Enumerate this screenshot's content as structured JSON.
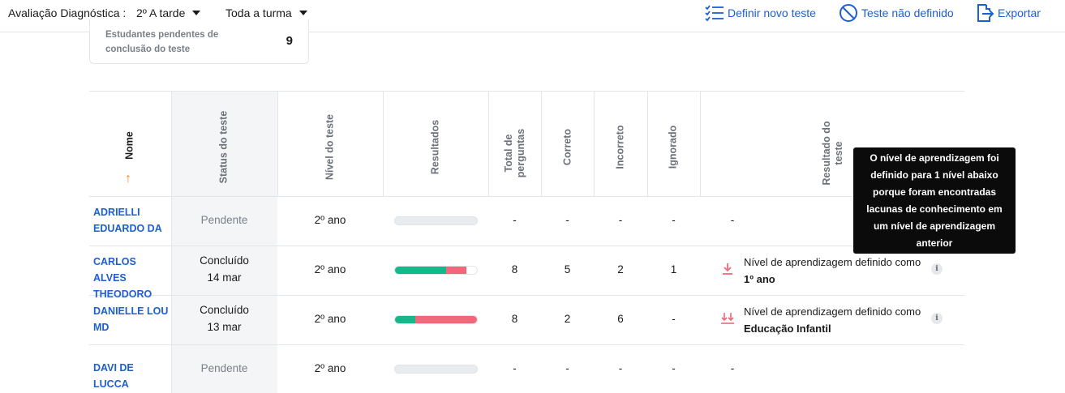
{
  "topbar": {
    "label": "Avaliação Diagnóstica :",
    "class_select": "2º A tarde",
    "group_select": "Toda a turma",
    "actions": {
      "define_test": "Definir novo teste",
      "test_undefined": "Teste não definido",
      "export": "Exportar"
    },
    "colors": {
      "accent": "#1d5fcf"
    }
  },
  "summary_card": {
    "label": "Estudantes pendentes de conclusão do teste",
    "value": "9"
  },
  "table": {
    "columns": {
      "name": "Nome",
      "status": "Status do teste",
      "level": "Nível do teste",
      "results": "Resultados",
      "total": "Total de perguntas",
      "correct": "Correto",
      "incorrect": "Incorreto",
      "ignored": "Ignorado",
      "outcome": "Resultado do teste"
    },
    "rows": [
      {
        "name": "ADRIELLI EDUARDO DA",
        "status": "Pendente",
        "date": "",
        "level": "2º ano",
        "correct_fraction": 0,
        "incorrect_fraction": 0,
        "total": "-",
        "correct": "-",
        "incorrect": "-",
        "ignored": "-",
        "outcome_text": "-",
        "outcome_level": "",
        "outcome_icon": ""
      },
      {
        "name": "CARLOS ALVES THEODORO",
        "status": "Concluído",
        "date": "14 mar",
        "level": "2º ano",
        "correct_fraction": 0.625,
        "incorrect_fraction": 0.25,
        "total": "8",
        "correct": "5",
        "incorrect": "2",
        "ignored": "1",
        "outcome_text": "Nível de aprendizagem definido como",
        "outcome_level": "1º ano",
        "outcome_icon": "arrow-down-icon"
      },
      {
        "name": "DANIELLE LOU MD",
        "status": "Concluído",
        "date": "13 mar",
        "level": "2º ano",
        "correct_fraction": 0.25,
        "incorrect_fraction": 0.75,
        "total": "8",
        "correct": "2",
        "incorrect": "6",
        "ignored": "-",
        "outcome_text": "Nível de aprendizagem definido como",
        "outcome_level": "Educação Infantil",
        "outcome_icon": "double-arrow-down-icon"
      },
      {
        "name": "DAVI DE LUCCA",
        "status": "Pendente",
        "date": "",
        "level": "2º ano",
        "correct_fraction": 0,
        "incorrect_fraction": 0,
        "total": "-",
        "correct": "-",
        "incorrect": "-",
        "ignored": "-",
        "outcome_text": "-",
        "outcome_level": "",
        "outcome_icon": ""
      }
    ],
    "colors": {
      "correct": "#14b88a",
      "incorrect": "#f2677a",
      "empty": "#e9ecef",
      "sort_arrow": "#f28b1f"
    }
  },
  "tooltip": {
    "text": "O nível de aprendizagem foi definido para 1 nível abaixo porque foram encontradas lacunas de conhecimento em um nível de aprendizagem anterior"
  }
}
